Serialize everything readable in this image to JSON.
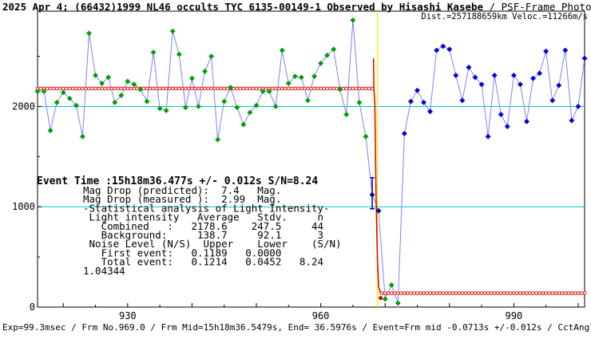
{
  "header": {
    "title_main": "2025 Apr 4; (66432)1999 NL46 occults TYC 6135-00149-1 Observed by Hisashi Kasebe",
    "title_suffix": " / PSF-Frame Photome",
    "sub_right": "Dist.=257188659km Veloc.=11266m/s"
  },
  "footer": {
    "text": "Exp=99.3msec / Frm No.969.0 / Frm Mid=15h18m36.5479s,  End= 36.5976s / Event=Frm mid -0.0713s +/-0.012s / CctAngle="
  },
  "stats": {
    "event_time": "Event Time :15h18m36.477s  +/- 0.012s  S/N=8.24",
    "lines": [
      "Mag Drop (predicted):  7.4   Mag.",
      "Mag Drop (measured ):  2.99  Mag.",
      "-Statistical analysis of Light Intensity-",
      " Light intensity   Average   Stdv.     n",
      "   Combined   :   2178.6    247.5     44",
      "   Background:     138.7     92.1      3",
      " Noise Level (N/S)  Upper    Lower    (S/N)",
      "   First event:   0.1189   0.0000",
      "   Total event:   0.1214   0.0452   8.24",
      "1.04344"
    ]
  },
  "chart_data": {
    "type": "line",
    "xlim": [
      916,
      1001
    ],
    "ylim": [
      0,
      2950
    ],
    "x_ticks": [
      930,
      960,
      990
    ],
    "y_ticks": [
      0,
      1000,
      2000
    ],
    "reference_lines": [
      2000,
      1000
    ],
    "event_frame": 968.8,
    "colors": {
      "pre_event": "#00a000",
      "post_event": "#0000dd",
      "event": "#000099",
      "connector": "#8080ff",
      "fit": "#e00000",
      "reference": "#00c8c8",
      "event_marker": "#f0f000"
    },
    "series": [
      {
        "x": [
          916,
          917,
          918,
          919,
          920,
          921,
          922,
          923,
          924,
          925,
          926,
          927,
          928,
          929,
          930,
          931,
          932,
          933,
          934,
          935,
          936,
          937,
          938,
          939,
          940,
          941,
          942,
          943,
          944,
          945,
          946,
          947,
          948,
          949,
          950,
          951,
          952,
          953,
          954,
          955,
          956,
          957,
          958,
          959,
          960,
          961,
          962,
          963,
          964,
          965,
          966,
          967
        ],
        "values": [
          2150,
          2150,
          1760,
          2040,
          2140,
          2080,
          2010,
          1700,
          2730,
          2310,
          2230,
          2290,
          2040,
          2110,
          2250,
          2220,
          2170,
          2050,
          2540,
          1980,
          1960,
          2750,
          2520,
          1990,
          2280,
          2000,
          2350,
          2500,
          1670,
          2050,
          2190,
          1990,
          1820,
          1940,
          2010,
          2150,
          2150,
          2000,
          2560,
          2230,
          2300,
          2290,
          2060,
          2300,
          2430,
          2510,
          2570,
          2170,
          1920,
          2860,
          2040,
          1700
        ]
      },
      {
        "x": [
          968,
          969
        ],
        "values": [
          1120,
          960
        ]
      },
      {
        "x": [
          970,
          971,
          972,
          973,
          974,
          975,
          976,
          977,
          978,
          979,
          980,
          981,
          982,
          983,
          984,
          985,
          986,
          987,
          988,
          989,
          990,
          991,
          992,
          993,
          994,
          995,
          996,
          997,
          998,
          999,
          1000,
          1001
        ],
        "values": [
          80,
          220,
          40,
          1730,
          2050,
          2160,
          2040,
          1950,
          2560,
          2600,
          2570,
          2310,
          2060,
          2390,
          2290,
          2220,
          1700,
          2310,
          1920,
          1800,
          2310,
          2220,
          1850,
          2280,
          2330,
          2550,
          2060,
          2210,
          2560,
          1860,
          2000,
          2480
        ]
      }
    ],
    "fit": {
      "upper_level": 2178.6,
      "lower_level": 138.7
    }
  }
}
